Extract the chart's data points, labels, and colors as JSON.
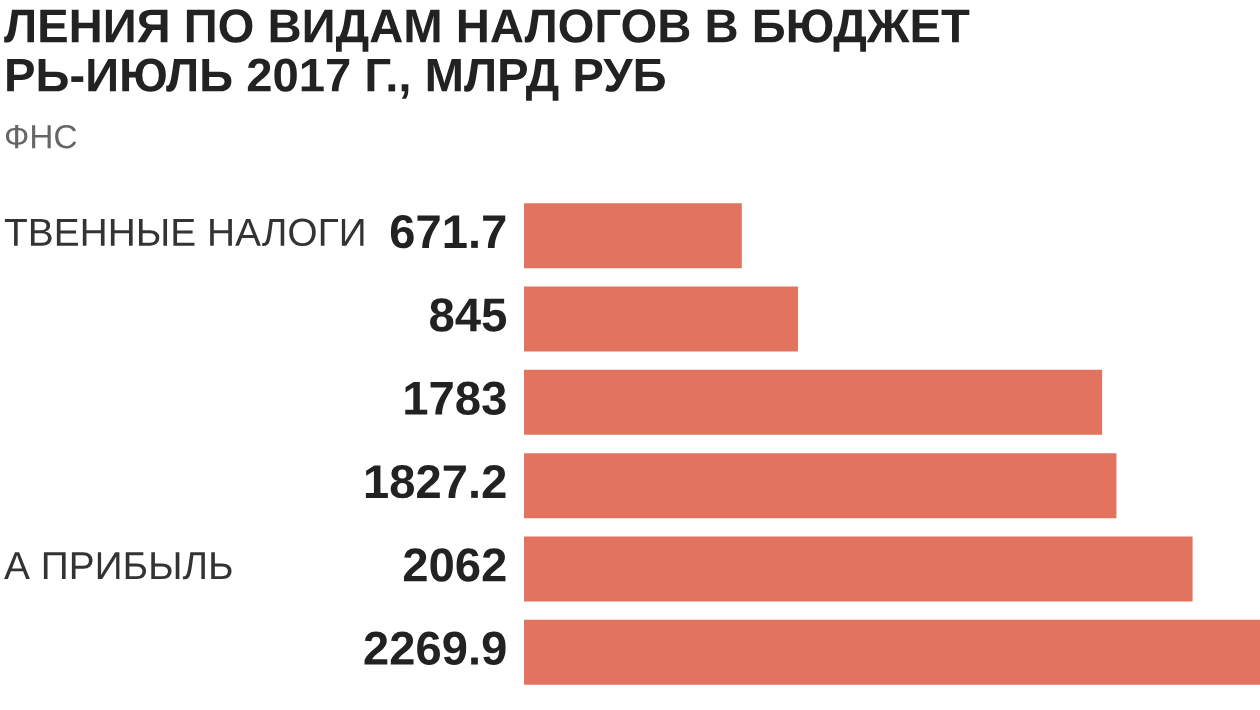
{
  "chart_data": {
    "type": "bar",
    "orientation": "horizontal",
    "title": "ЛЕНИЯ ПО ВИДАМ НАЛОГОВ В БЮДЖЕТ\nРЬ-ИЮЛЬ 2017 Г., МЛРД РУБ",
    "subtitle": "ФНС",
    "categories": [
      "ТВЕННЫЕ НАЛОГИ",
      null,
      null,
      null,
      "А ПРИБЫЛЬ",
      null
    ],
    "values": [
      671.7,
      845,
      1783,
      1827.2,
      2062,
      2269.9
    ],
    "color": "#e2735f",
    "data_labels": true,
    "grid": false,
    "legend": false
  }
}
